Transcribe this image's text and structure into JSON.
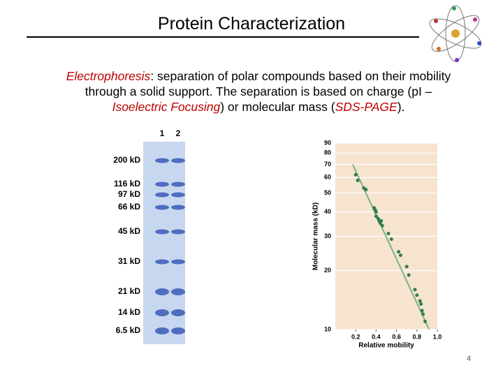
{
  "slide": {
    "title": "Protein Characterization",
    "paragraph": [
      {
        "text": "Electrophoresis",
        "emphasis": true
      },
      {
        "text": ":  separation of polar compounds based on their mobility through a solid support.  The separation is based on charge (pI – ",
        "emphasis": false
      },
      {
        "text": "Isoelectric Focusing",
        "emphasis": true
      },
      {
        "text": ") or molecular mass (",
        "emphasis": false
      },
      {
        "text": "SDS-PAGE",
        "emphasis": true
      },
      {
        "text": ").",
        "emphasis": false
      }
    ],
    "gel": {
      "lanes": [
        "1",
        "2"
      ],
      "markers": [
        "200 kD",
        "116 kD",
        "97 kD",
        "66 kD",
        "45 kD",
        "31 kD",
        "21 kD",
        "14 kD",
        "6.5 kD"
      ]
    },
    "page_number": "4"
  },
  "chart_data": {
    "type": "scatter",
    "x_label": "Relative mobility",
    "y_label": "Molecular mass (kD)",
    "x": [
      0.2,
      0.22,
      0.28,
      0.3,
      0.38,
      0.39,
      0.4,
      0.4,
      0.42,
      0.43,
      0.44,
      0.45,
      0.46,
      0.52,
      0.55,
      0.62,
      0.64,
      0.7,
      0.72,
      0.78,
      0.8,
      0.83,
      0.84,
      0.85,
      0.86,
      0.88
    ],
    "y": [
      62,
      58,
      53,
      52,
      42,
      41,
      40,
      38,
      37,
      36,
      35,
      36,
      34,
      31,
      29,
      25,
      24,
      21,
      19,
      16,
      15,
      14,
      13.5,
      12.5,
      12,
      11
    ],
    "color": "#2e7d4f",
    "trendline": {
      "x": [
        0.17,
        0.92
      ],
      "y": [
        70,
        10
      ],
      "color": "#7fae90"
    },
    "xlim": [
      0,
      1.0
    ],
    "ylim": [
      10,
      90
    ],
    "xticks": [
      0.2,
      0.4,
      0.6,
      0.8,
      {
        "value": 1.0,
        "label": "1.0"
      }
    ],
    "yticks": [
      10,
      20,
      30,
      40,
      50,
      60,
      70,
      80,
      90
    ],
    "y_log": true,
    "grid": true
  }
}
